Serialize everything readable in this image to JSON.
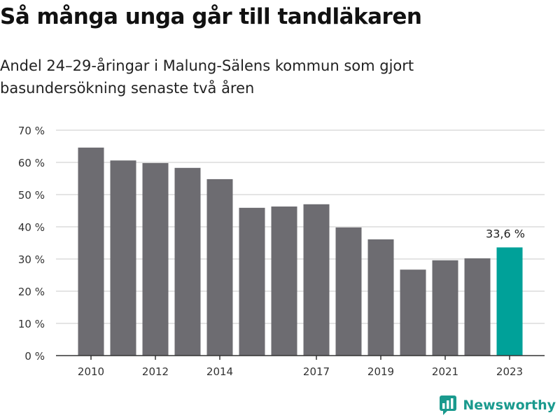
{
  "title": "Så många unga går till tandläkaren",
  "subtitle": "Andel 24–29-åringar i Malung-Sälens kommun som gjort basundersökning senaste två åren",
  "brand": "Newsworthy",
  "colors": {
    "bar": "#6d6c71",
    "highlight": "#00a199",
    "grid": "#dcdcdc",
    "axis": "#333333",
    "brand": "#1a9a8e"
  },
  "chart_data": {
    "type": "bar",
    "categories": [
      "2010",
      "2011",
      "2012",
      "2013",
      "2014",
      "2015",
      "2016",
      "2017",
      "2018",
      "2019",
      "2020",
      "2021",
      "2022",
      "2023"
    ],
    "x_tick_labels": [
      "2010",
      "2012",
      "2014",
      "2017",
      "2019",
      "2021",
      "2023"
    ],
    "values": [
      64.6,
      60.6,
      59.8,
      58.3,
      54.8,
      45.9,
      46.3,
      47.0,
      39.8,
      36.1,
      26.7,
      29.6,
      30.2,
      33.6
    ],
    "highlight_index": 13,
    "annotation": {
      "category": "2023",
      "text": "33,6 %"
    },
    "y_ticks": [
      0,
      10,
      20,
      30,
      40,
      50,
      60,
      70
    ],
    "y_tick_suffix": " %",
    "ylim": [
      0,
      70
    ],
    "grid": true,
    "xlabel": "",
    "ylabel": ""
  }
}
